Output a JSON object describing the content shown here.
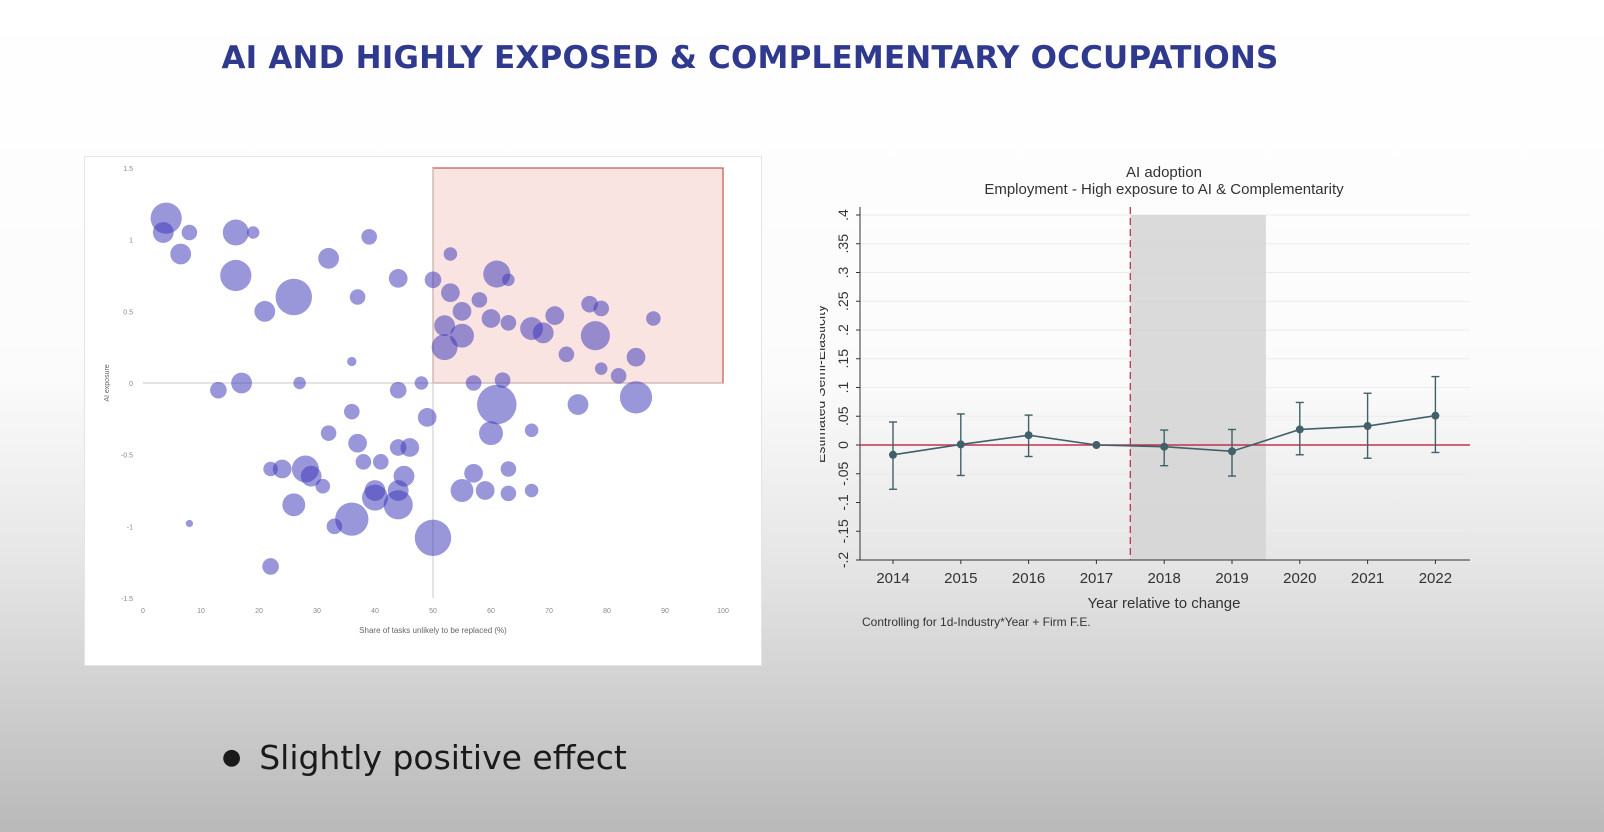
{
  "slide": {
    "title": "AI AND HIGHLY EXPOSED & COMPLEMENTARY OCCUPATIONS",
    "bullet": "Slightly positive effect"
  },
  "chart_data": [
    {
      "type": "scatter",
      "title": "",
      "xlabel": "Share of tasks unlikely to be replaced (%)",
      "ylabel": "AI exposure",
      "xlim": [
        0,
        100
      ],
      "ylim": [
        -1.5,
        1.5
      ],
      "x_ticks": [
        "0",
        "10",
        "20",
        "30",
        "40",
        "50",
        "60",
        "70",
        "80",
        "90",
        "100"
      ],
      "y_ticks": [
        "-1.5",
        "-1",
        "-0.5",
        "0",
        "0.5",
        "1",
        "1.5"
      ],
      "reference_lines": {
        "x": 50,
        "y": 0
      },
      "highlight_region": {
        "x": [
          50,
          100
        ],
        "y": [
          0,
          1.5
        ],
        "color": "#f9e4e1"
      },
      "marker_color": "#3b35b8",
      "points": [
        {
          "x": 4,
          "y": 1.15,
          "s": 3
        },
        {
          "x": 3.5,
          "y": 1.05,
          "s": 2
        },
        {
          "x": 8,
          "y": 1.05,
          "s": 1.5
        },
        {
          "x": 6.5,
          "y": 0.9,
          "s": 2
        },
        {
          "x": 16,
          "y": 1.05,
          "s": 2.5
        },
        {
          "x": 19,
          "y": 1.05,
          "s": 1.2
        },
        {
          "x": 16,
          "y": 0.75,
          "s": 3
        },
        {
          "x": 21,
          "y": 0.5,
          "s": 2
        },
        {
          "x": 26,
          "y": 0.6,
          "s": 3.5
        },
        {
          "x": 32,
          "y": 0.87,
          "s": 2
        },
        {
          "x": 39,
          "y": 1.02,
          "s": 1.5
        },
        {
          "x": 37,
          "y": 0.6,
          "s": 1.5
        },
        {
          "x": 44,
          "y": 0.73,
          "s": 1.8
        },
        {
          "x": 50,
          "y": 0.72,
          "s": 1.6
        },
        {
          "x": 53,
          "y": 0.9,
          "s": 1.3
        },
        {
          "x": 53,
          "y": 0.63,
          "s": 1.8
        },
        {
          "x": 61,
          "y": 0.76,
          "s": 2.6
        },
        {
          "x": 63,
          "y": 0.72,
          "s": 1.2
        },
        {
          "x": 58,
          "y": 0.58,
          "s": 1.5
        },
        {
          "x": 55,
          "y": 0.5,
          "s": 1.8
        },
        {
          "x": 52,
          "y": 0.4,
          "s": 2
        },
        {
          "x": 55,
          "y": 0.33,
          "s": 2.3
        },
        {
          "x": 52,
          "y": 0.25,
          "s": 2.5
        },
        {
          "x": 60,
          "y": 0.45,
          "s": 1.8
        },
        {
          "x": 63,
          "y": 0.42,
          "s": 1.5
        },
        {
          "x": 67,
          "y": 0.38,
          "s": 2.2
        },
        {
          "x": 69,
          "y": 0.35,
          "s": 2
        },
        {
          "x": 71,
          "y": 0.47,
          "s": 1.8
        },
        {
          "x": 73,
          "y": 0.2,
          "s": 1.5
        },
        {
          "x": 77,
          "y": 0.55,
          "s": 1.6
        },
        {
          "x": 79,
          "y": 0.52,
          "s": 1.5
        },
        {
          "x": 78,
          "y": 0.33,
          "s": 2.8
        },
        {
          "x": 79,
          "y": 0.1,
          "s": 1.2
        },
        {
          "x": 82,
          "y": 0.05,
          "s": 1.5
        },
        {
          "x": 85,
          "y": 0.18,
          "s": 1.8
        },
        {
          "x": 88,
          "y": 0.45,
          "s": 1.4
        },
        {
          "x": 61,
          "y": -0.15,
          "s": 3.8
        },
        {
          "x": 57,
          "y": 0.0,
          "s": 1.5
        },
        {
          "x": 62,
          "y": 0.02,
          "s": 1.5
        },
        {
          "x": 75,
          "y": -0.15,
          "s": 2
        },
        {
          "x": 85,
          "y": -0.1,
          "s": 3.1
        },
        {
          "x": 67,
          "y": -0.33,
          "s": 1.3
        },
        {
          "x": 60,
          "y": -0.35,
          "s": 2.3
        },
        {
          "x": 13,
          "y": -0.05,
          "s": 1.6
        },
        {
          "x": 17,
          "y": 0.0,
          "s": 2
        },
        {
          "x": 27,
          "y": 0.0,
          "s": 1.2
        },
        {
          "x": 36,
          "y": 0.15,
          "s": 0.9
        },
        {
          "x": 44,
          "y": -0.05,
          "s": 1.6
        },
        {
          "x": 48,
          "y": 0.0,
          "s": 1.3
        },
        {
          "x": 49,
          "y": -0.24,
          "s": 1.8
        },
        {
          "x": 36,
          "y": -0.2,
          "s": 1.5
        },
        {
          "x": 32,
          "y": -0.35,
          "s": 1.5
        },
        {
          "x": 37,
          "y": -0.42,
          "s": 1.8
        },
        {
          "x": 44,
          "y": -0.45,
          "s": 1.6
        },
        {
          "x": 46,
          "y": -0.45,
          "s": 1.8
        },
        {
          "x": 38,
          "y": -0.55,
          "s": 1.5
        },
        {
          "x": 41,
          "y": -0.55,
          "s": 1.5
        },
        {
          "x": 45,
          "y": -0.65,
          "s": 2
        },
        {
          "x": 44,
          "y": -0.75,
          "s": 2
        },
        {
          "x": 40,
          "y": -0.75,
          "s": 2
        },
        {
          "x": 28,
          "y": -0.6,
          "s": 2.6
        },
        {
          "x": 29,
          "y": -0.65,
          "s": 2
        },
        {
          "x": 24,
          "y": -0.6,
          "s": 1.8
        },
        {
          "x": 22,
          "y": -0.6,
          "s": 1.4
        },
        {
          "x": 26,
          "y": -0.85,
          "s": 2.2
        },
        {
          "x": 31,
          "y": -0.72,
          "s": 1.4
        },
        {
          "x": 36,
          "y": -0.95,
          "s": 3.2
        },
        {
          "x": 40,
          "y": -0.8,
          "s": 2.5
        },
        {
          "x": 44,
          "y": -0.85,
          "s": 2.8
        },
        {
          "x": 33,
          "y": -1.0,
          "s": 1.5
        },
        {
          "x": 50,
          "y": -1.08,
          "s": 3.5
        },
        {
          "x": 22,
          "y": -1.28,
          "s": 1.6
        },
        {
          "x": 8,
          "y": -0.98,
          "s": 0.7
        },
        {
          "x": 57,
          "y": -0.63,
          "s": 1.8
        },
        {
          "x": 59,
          "y": -0.75,
          "s": 1.8
        },
        {
          "x": 55,
          "y": -0.75,
          "s": 2.2
        },
        {
          "x": 63,
          "y": -0.6,
          "s": 1.5
        },
        {
          "x": 63,
          "y": -0.77,
          "s": 1.5
        },
        {
          "x": 67,
          "y": -0.75,
          "s": 1.3
        }
      ]
    },
    {
      "type": "line",
      "title": "AI adoption",
      "subtitle": "Employment - High exposure to AI & Complementarity",
      "xlabel": "Year relative to change",
      "ylabel": "Estimated Semi-Elasticity",
      "note": "Controlling for 1d-Industry*Year + Firm F.E.",
      "x": [
        "2014",
        "2015",
        "2016",
        "2017",
        "2018",
        "2019",
        "2020",
        "2021",
        "2022"
      ],
      "y_ticks": [
        "-.2",
        "-.15",
        "-.1",
        "-.05",
        "0",
        ".05",
        ".1",
        ".15",
        ".2",
        ".25",
        ".3",
        ".35",
        ".4"
      ],
      "ylim": [
        -0.2,
        0.4
      ],
      "series": [
        {
          "values": [
            -0.017,
            0.001,
            0.017,
            0.0,
            -0.003,
            -0.011,
            0.027,
            0.033,
            0.051
          ],
          "ci_low": [
            -0.077,
            -0.053,
            -0.02,
            0.0,
            -0.036,
            -0.054,
            -0.017,
            -0.023,
            -0.013
          ],
          "ci_high": [
            0.04,
            0.054,
            0.052,
            0.0,
            0.026,
            0.027,
            0.074,
            0.09,
            0.119
          ]
        }
      ],
      "event_line_x": 2017.5,
      "shaded_region": [
        2017.5,
        2019.5
      ],
      "reference_line_y": 0,
      "colors": {
        "line": "#41606a",
        "zero_line": "#c0334d",
        "event_line": "#c0334d",
        "shade": "#d4d4d4"
      }
    }
  ]
}
